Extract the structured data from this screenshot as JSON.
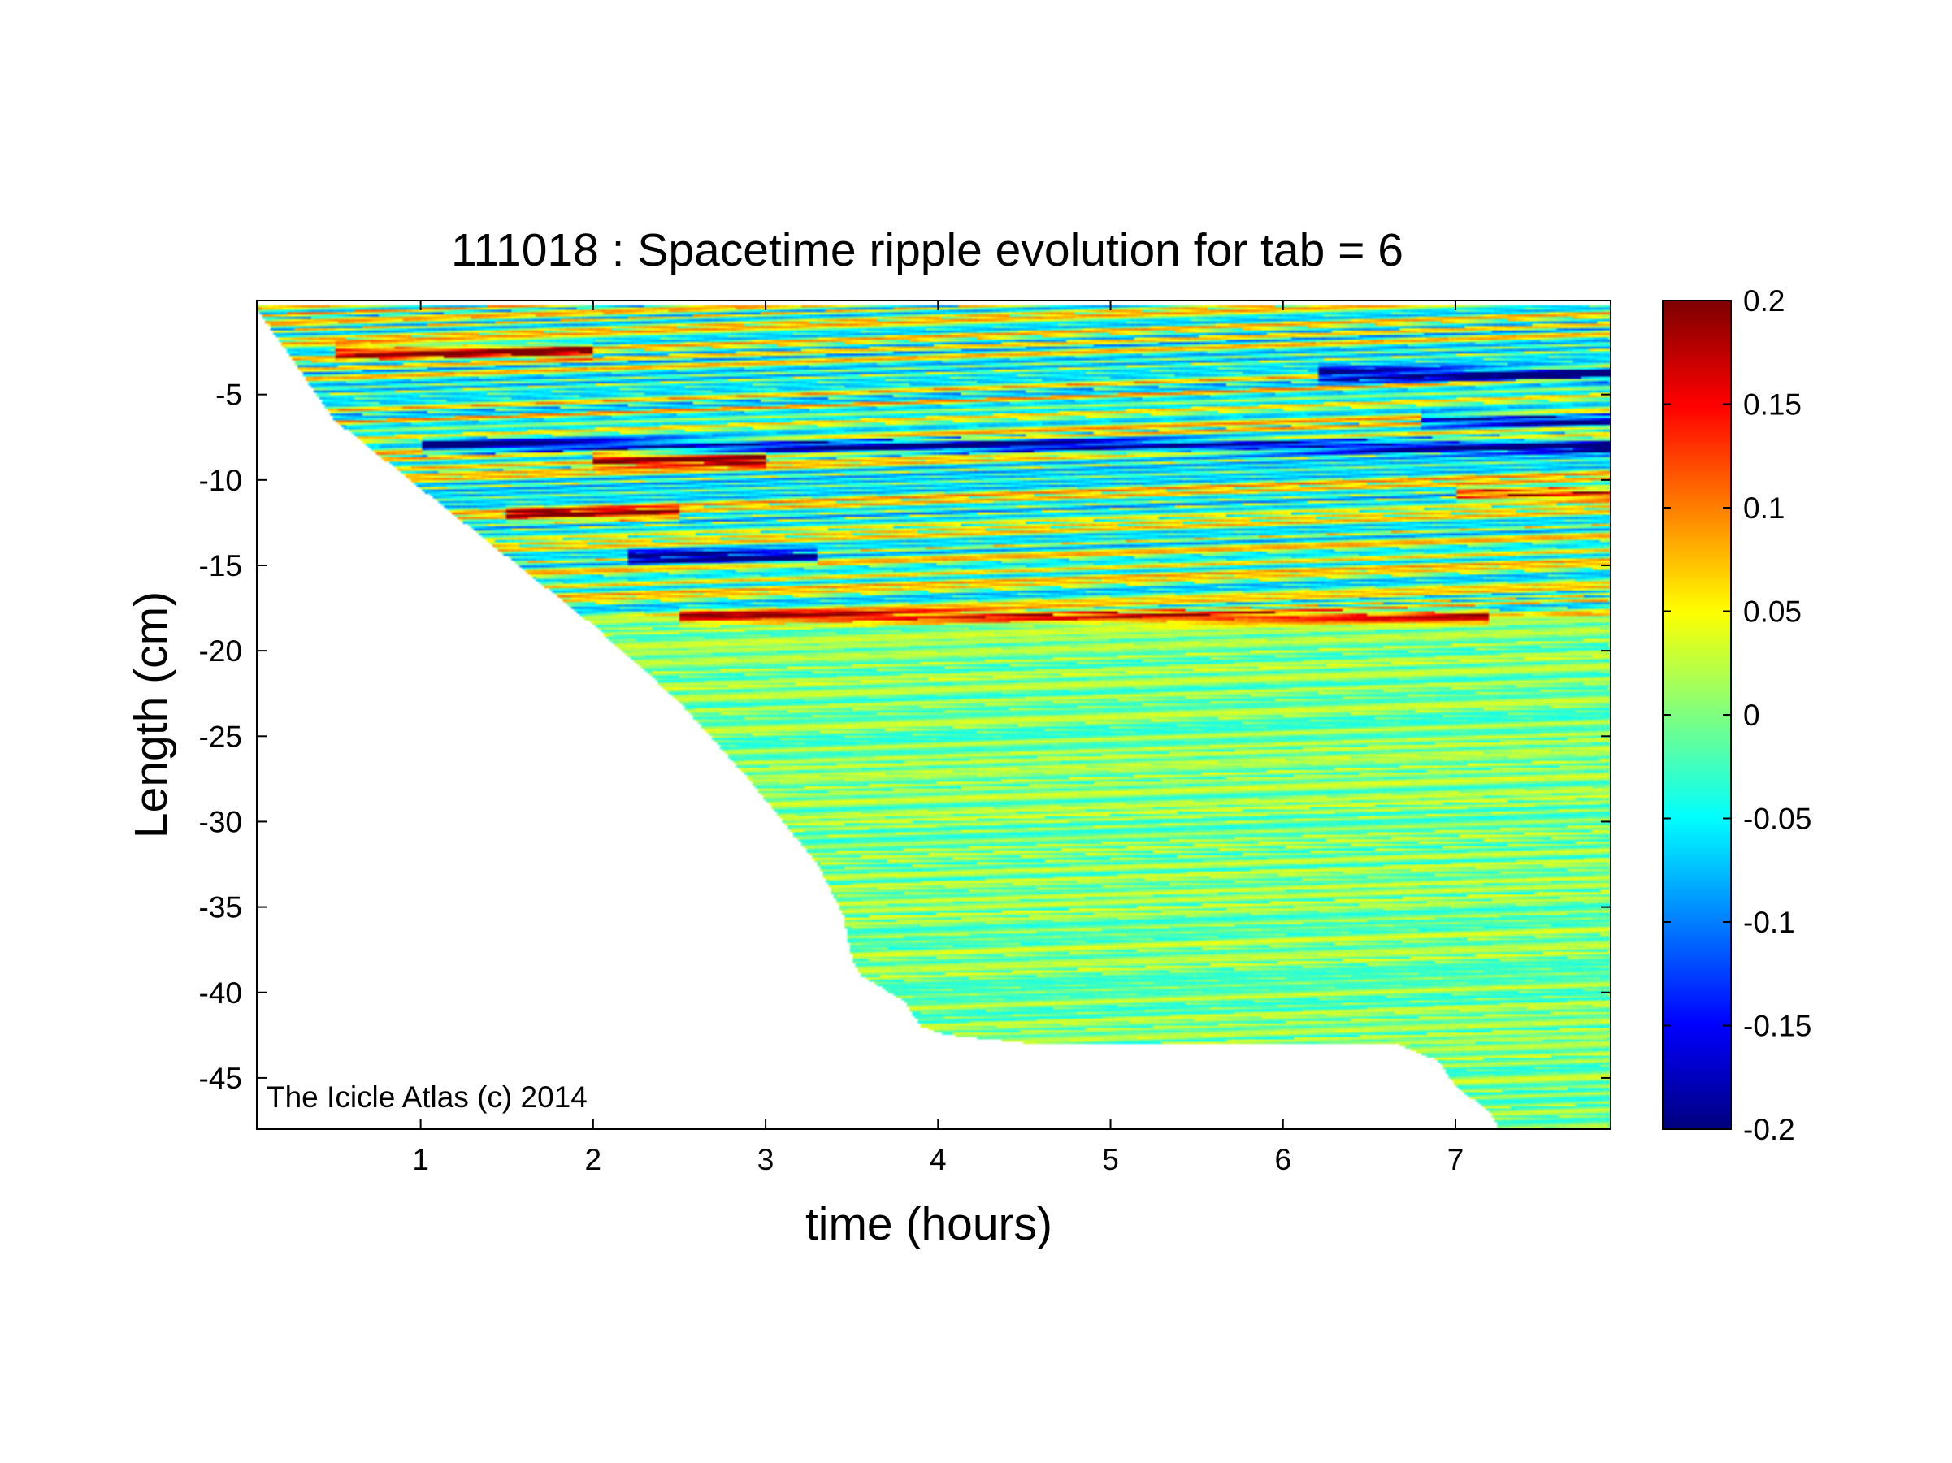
{
  "chart_data": {
    "type": "heatmap",
    "title": "111018 : Spacetime ripple evolution for tab = 6",
    "xlabel": "time (hours)",
    "ylabel": "Length (cm)",
    "xlim": [
      0.05,
      7.9
    ],
    "ylim": [
      -48,
      0.5
    ],
    "xticks": [
      1,
      2,
      3,
      4,
      5,
      6,
      7
    ],
    "xtick_labels": [
      "1",
      "2",
      "3",
      "4",
      "5",
      "6",
      "7"
    ],
    "yticks": [
      -5,
      -10,
      -15,
      -20,
      -25,
      -30,
      -35,
      -40,
      -45
    ],
    "ytick_labels": [
      "-5",
      "-10",
      "-15",
      "-20",
      "-25",
      "-30",
      "-35",
      "-40",
      "-45"
    ],
    "colorbar": {
      "colormap": "jet",
      "clim": [
        -0.2,
        0.2
      ],
      "ticks": [
        0.2,
        0.15,
        0.1,
        0.05,
        0,
        -0.05,
        -0.1,
        -0.15,
        -0.2
      ],
      "tick_labels": [
        "0.2",
        "0.15",
        "0.1",
        "0.05",
        "0",
        "-0.05",
        "-0.1",
        "-0.15",
        "-0.2"
      ]
    },
    "grid": false,
    "data_region_lower_boundary": {
      "time_hours": [
        0.05,
        0.5,
        1.0,
        1.5,
        2.0,
        2.5,
        2.9,
        3.3,
        3.45,
        3.5,
        3.55,
        3.8,
        3.9,
        4.05,
        4.55,
        6.3,
        6.65,
        6.9,
        7.0,
        7.2,
        7.25,
        7.9
      ],
      "length_cm": [
        0,
        -6.5,
        -10.5,
        -14.5,
        -18.5,
        -23.0,
        -27.5,
        -32.5,
        -35.5,
        -38.0,
        -39.0,
        -40.5,
        -42.0,
        -42.5,
        -43.0,
        -43.0,
        -43.0,
        -44.0,
        -45.5,
        -47.0,
        -48.0,
        -48.0
      ]
    },
    "approx_amplitude": {
      "upper_region_cm": [
        0,
        -18
      ],
      "upper_region_range": [
        -0.2,
        0.2
      ],
      "lower_region_cm": [
        -18,
        -48
      ],
      "lower_region_range": [
        -0.06,
        0.06
      ]
    },
    "prominent_bands": [
      {
        "length_cm": -2.5,
        "value": 0.17,
        "time_hours": [
          0.5,
          2.0
        ]
      },
      {
        "length_cm": -3.8,
        "value": -0.19,
        "time_hours": [
          6.2,
          7.9
        ]
      },
      {
        "length_cm": -6.5,
        "value": -0.18,
        "time_hours": [
          6.8,
          7.9
        ]
      },
      {
        "length_cm": -8.0,
        "value": -0.19,
        "time_hours": [
          1.0,
          7.9
        ]
      },
      {
        "length_cm": -8.8,
        "value": 0.18,
        "time_hours": [
          2.0,
          3.0
        ]
      },
      {
        "length_cm": -10.8,
        "value": 0.16,
        "time_hours": [
          7.0,
          7.9
        ]
      },
      {
        "length_cm": -12.0,
        "value": 0.14,
        "time_hours": [
          1.5,
          2.5
        ]
      },
      {
        "length_cm": -14.5,
        "value": -0.17,
        "time_hours": [
          2.2,
          3.3
        ]
      },
      {
        "length_cm": -18.0,
        "value": 0.14,
        "time_hours": [
          2.5,
          7.2
        ]
      }
    ],
    "annotation": "The Icicle Atlas (c) 2014"
  }
}
